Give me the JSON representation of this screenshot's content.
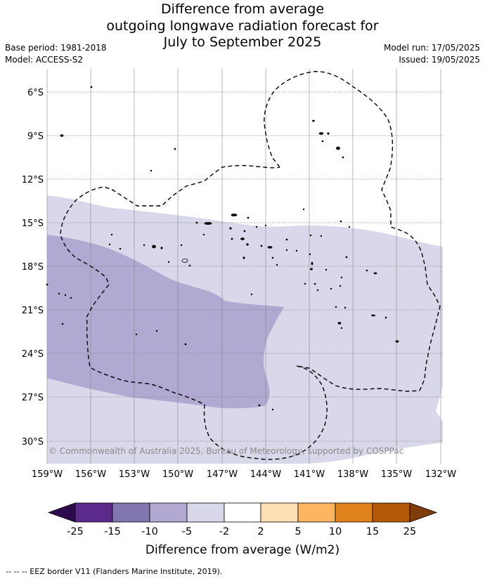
{
  "title": {
    "line1": "Difference from average",
    "line2": "outgoing longwave radiation forecast for",
    "line3": "July to September 2025"
  },
  "meta": {
    "base_period": "Base period: 1981-2018",
    "model": "Model: ACCESS-S2",
    "model_run": "Model run: 17/05/2025",
    "issued": "Issued: 19/05/2025"
  },
  "map": {
    "lat_labels": [
      "6°S",
      "9°S",
      "12°S",
      "15°S",
      "18°S",
      "21°S",
      "24°S",
      "27°S",
      "30°S"
    ],
    "lon_labels": [
      "159°W",
      "156°W",
      "153°W",
      "150°W",
      "147°W",
      "144°W",
      "141°W",
      "138°W",
      "135°W",
      "132°W"
    ],
    "copyright": "© Commonwealth of Australia 2025, Bureau of Meteorology, supported by COSPPac"
  },
  "colorbar": {
    "ticks": [
      "-25",
      "-15",
      "-10",
      "-5",
      "-2",
      "2",
      "5",
      "10",
      "15",
      "25"
    ],
    "colors": [
      "#5b2a8a",
      "#8176ad",
      "#b1a9d1",
      "#d9d8ea",
      "#ffffff",
      "#fde0b6",
      "#fdb561",
      "#e0821c",
      "#b35806"
    ],
    "extend_low": "#2d0a4e",
    "extend_high": "#7f3b08",
    "title": "Difference from average (W/m2)"
  },
  "footer": {
    "legend": "--  --  -- EEZ border V11 (Flanders Marine Institute, 2019)."
  }
}
